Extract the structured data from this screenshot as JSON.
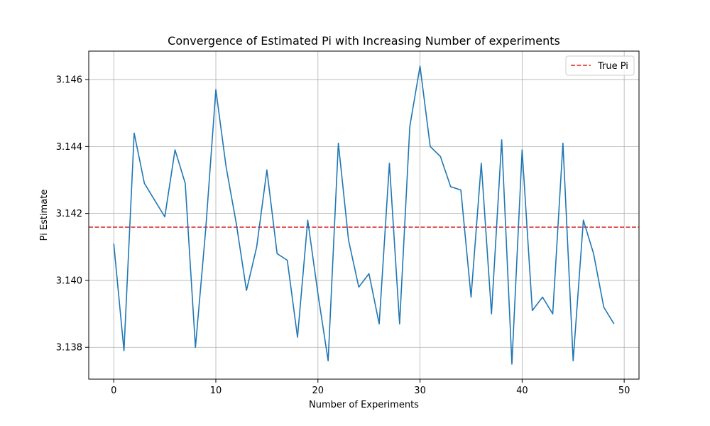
{
  "chart_data": {
    "type": "line",
    "title": "Convergence of Estimated Pi with Increasing Number of experiments",
    "xlabel": "Number of Experiments",
    "ylabel": "Pi Estimate",
    "xlim": [
      -2.45,
      51.45
    ],
    "ylim": [
      3.13705,
      3.14685
    ],
    "xticks": [
      0,
      10,
      20,
      30,
      40,
      50
    ],
    "xtick_labels": [
      "0",
      "10",
      "20",
      "30",
      "40",
      "50"
    ],
    "yticks": [
      3.138,
      3.14,
      3.142,
      3.144,
      3.146
    ],
    "ytick_labels": [
      "3.138",
      "3.140",
      "3.142",
      "3.144",
      "3.146"
    ],
    "grid": true,
    "legend_position": "top-right",
    "series": [
      {
        "color": "#1f77b4",
        "style": "solid",
        "x": [
          0,
          1,
          2,
          3,
          4,
          5,
          6,
          7,
          8,
          9,
          10,
          11,
          12,
          13,
          14,
          15,
          16,
          17,
          18,
          19,
          20,
          21,
          22,
          23,
          24,
          25,
          26,
          27,
          28,
          29,
          30,
          31,
          32,
          33,
          34,
          35,
          36,
          37,
          38,
          39,
          40,
          41,
          42,
          43,
          44,
          45,
          46,
          47,
          48,
          49
        ],
        "y": [
          3.1411,
          3.1379,
          3.1444,
          3.1429,
          3.1424,
          3.1419,
          3.1439,
          3.1429,
          3.138,
          3.1415,
          3.1457,
          3.1434,
          3.1417,
          3.1397,
          3.141,
          3.1433,
          3.1408,
          3.1406,
          3.1383,
          3.1418,
          3.1396,
          3.1376,
          3.1441,
          3.1412,
          3.1398,
          3.1402,
          3.1387,
          3.1435,
          3.1387,
          3.1446,
          3.1464,
          3.144,
          3.1437,
          3.1428,
          3.1427,
          3.1395,
          3.1435,
          3.139,
          3.1442,
          3.1375,
          3.1439,
          3.1391,
          3.1395,
          3.139,
          3.1441,
          3.1376,
          3.1418,
          3.1408,
          3.1392,
          3.1387
        ]
      }
    ],
    "reference_line": {
      "name": "True Pi",
      "value": 3.14159,
      "color": "#d62728",
      "style": "dashed"
    }
  }
}
